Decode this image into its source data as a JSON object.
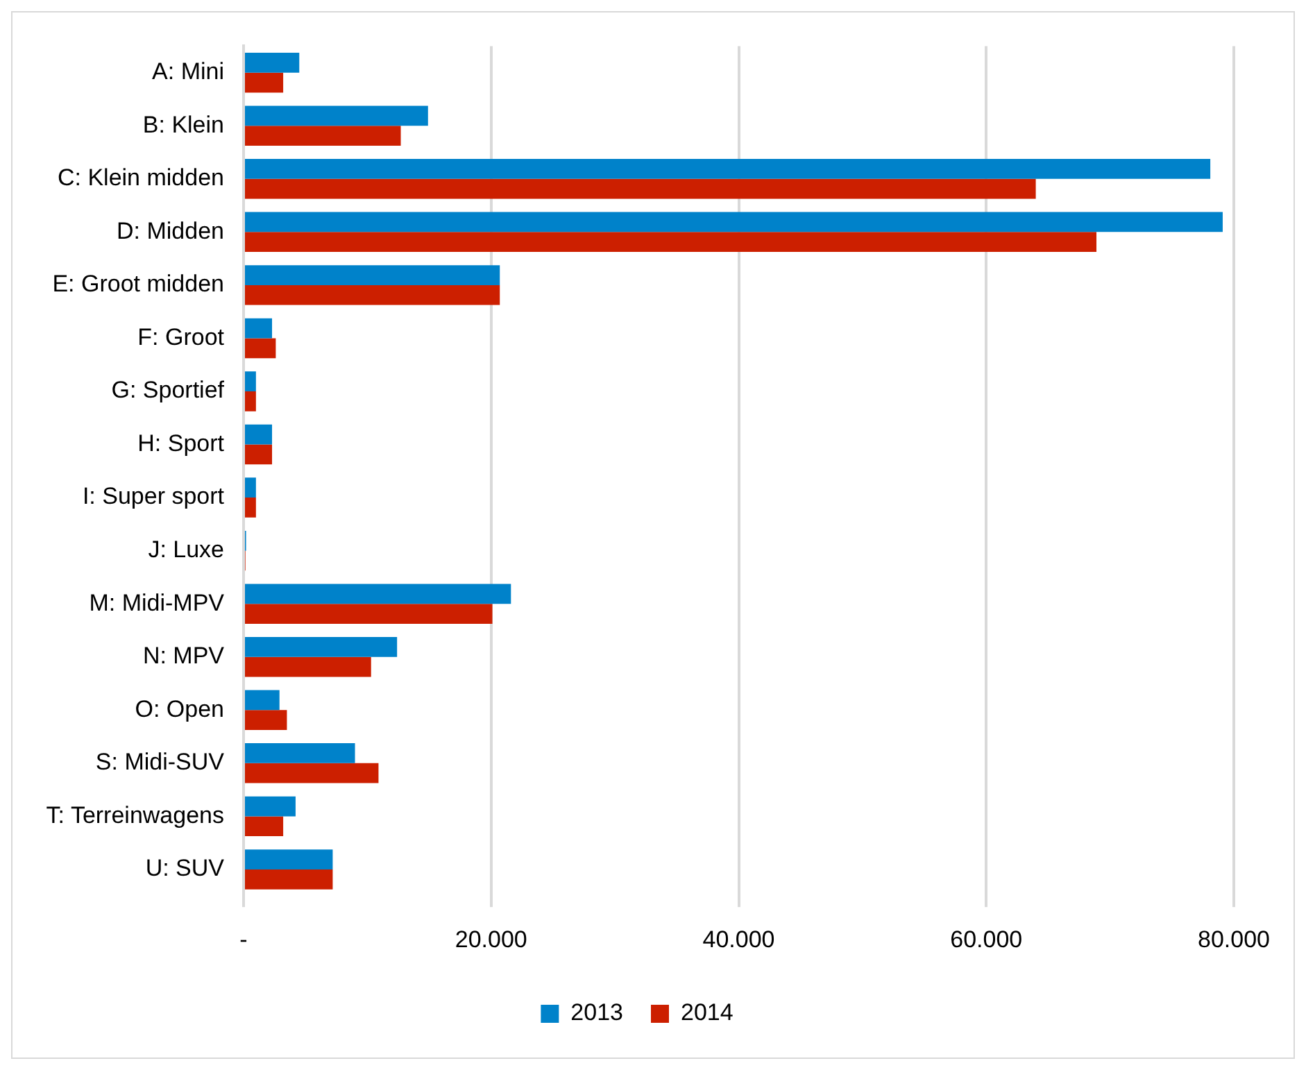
{
  "chart_data": {
    "type": "bar",
    "orientation": "horizontal",
    "categories": [
      "A: Mini",
      "B: Klein",
      "C: Klein midden",
      "D: Midden",
      "E: Groot midden",
      "F: Groot",
      "G: Sportief",
      "H: Sport",
      "I: Super sport",
      "J: Luxe",
      "M: Midi-MPV",
      "N: MPV",
      "O: Open",
      "S: Midi-SUV",
      "T: Terreinwagens",
      "U: SUV"
    ],
    "series": [
      {
        "name": "2013",
        "color": "#0082ca",
        "values": [
          4500,
          14900,
          78100,
          79100,
          20700,
          2300,
          1000,
          2300,
          1000,
          200,
          21600,
          12400,
          2900,
          9000,
          4200,
          7200
        ]
      },
      {
        "name": "2014",
        "color": "#cc1f00",
        "values": [
          3200,
          12700,
          64000,
          68900,
          20700,
          2600,
          1000,
          2300,
          1000,
          150,
          20100,
          10300,
          3500,
          10900,
          3200,
          7200
        ]
      }
    ],
    "xlim": [
      0,
      80000
    ],
    "xticks": [
      {
        "value": 0,
        "label": "-"
      },
      {
        "value": 20000,
        "label": "20.000"
      },
      {
        "value": 40000,
        "label": "40.000"
      },
      {
        "value": 60000,
        "label": "60.000"
      },
      {
        "value": 80000,
        "label": "80.000"
      }
    ],
    "grid": "x",
    "legend": "bottom"
  }
}
